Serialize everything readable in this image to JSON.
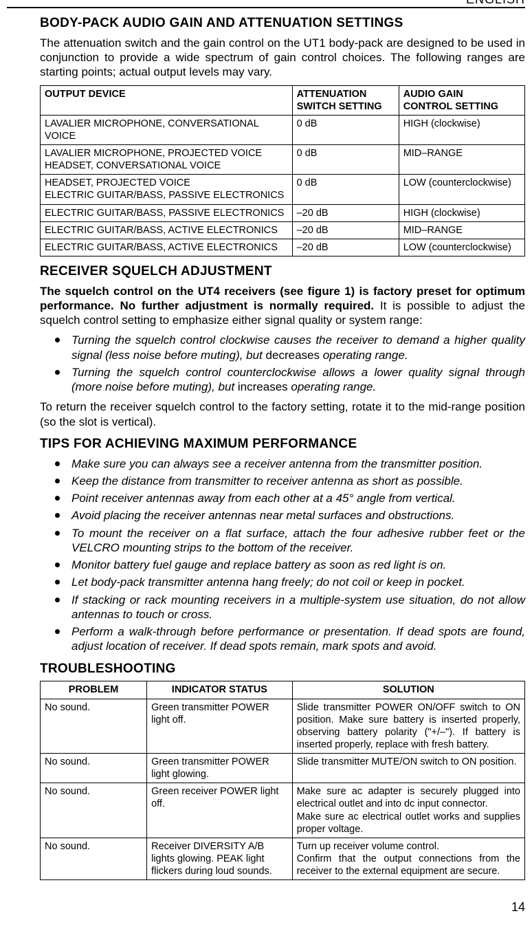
{
  "header": {
    "language": "ENGLISH"
  },
  "section1": {
    "title": "BODY-PACK AUDIO GAIN AND ATTENUATION SETTINGS",
    "intro": "The attenuation switch and the gain control on the UT1 body-pack are designed to be used in conjunction to provide a wide spectrum of gain control choices. The following ranges are starting points; actual output levels may vary.",
    "table": {
      "headers": {
        "c1": "OUTPUT DEVICE",
        "c2a": "ATTENUATION",
        "c2b": "SWITCH SETTING",
        "c3a": "AUDIO GAIN",
        "c3b": "CONTROL SETTING"
      },
      "rows": [
        {
          "c1a": "LAVALIER MICROPHONE, CONVERSATIONAL VOICE",
          "c1b": "",
          "c2": "0 dB",
          "c3": "HIGH (clockwise)"
        },
        {
          "c1a": "LAVALIER MICROPHONE, PROJECTED VOICE",
          "c1b": "HEADSET, CONVERSATIONAL VOICE",
          "c2": "0 dB",
          "c3": "MID–RANGE"
        },
        {
          "c1a": "HEADSET, PROJECTED VOICE",
          "c1b": "ELECTRIC GUITAR/BASS, PASSIVE ELECTRONICS",
          "c2": "0 dB",
          "c3": "LOW (counterclockwise)"
        },
        {
          "c1a": "ELECTRIC GUITAR/BASS, PASSIVE ELECTRONICS",
          "c1b": "",
          "c2": "–20 dB",
          "c3": "HIGH (clockwise)"
        },
        {
          "c1a": "ELECTRIC GUITAR/BASS, ACTIVE ELECTRONICS",
          "c1b": "",
          "c2": "–20 dB",
          "c3": "MID–RANGE"
        },
        {
          "c1a": "ELECTRIC GUITAR/BASS, ACTIVE ELECTRONICS",
          "c1b": "",
          "c2": "–20 dB",
          "c3": "LOW (counterclockwise)"
        }
      ]
    }
  },
  "section2": {
    "title": "RECEIVER SQUELCH ADJUSTMENT",
    "lead_bold": "The squelch control on the UT4 receivers (see figure 1) is factory preset for optimum performance. No further adjustment is normally required.",
    "lead_rest": " It is possible to adjust the squelch control setting to emphasize either signal quality or system range:",
    "bullets": [
      {
        "pre": "Turning the squelch control clockwise causes the receiver to demand a higher quality signal (less noise before muting), but ",
        "mid": "decreases",
        "post": " operating range."
      },
      {
        "pre": "Turning the squelch control counterclockwise allows a lower quality signal through (more noise before muting), but ",
        "mid": "increases",
        "post": " operating range."
      }
    ],
    "outro": "To return the receiver squelch control to the factory setting, rotate it to the  mid-range position (so the slot is vertical)."
  },
  "section3": {
    "title": "TIPS FOR ACHIEVING MAXIMUM PERFORMANCE",
    "bullets": [
      "Make sure you can always see a receiver antenna from the transmitter  position.",
      "Keep the distance from transmitter to receiver antenna as  short as possible.",
      "Point receiver antennas away from each other at a 45° angle from vertical.",
      "Avoid placing the receiver antennas near metal surfaces and obstructions.",
      "To mount the receiver on a flat surface, attach the four adhesive rubber feet or the VELCRO mounting strips to the bottom of the receiver.",
      "Monitor battery fuel gauge and replace battery as soon as red light is on.",
      "Let body-pack transmitter antenna hang freely; do not coil or keep in pocket.",
      "If stacking or rack mounting receivers in a multiple-system use situation, do not allow antennas to touch or cross.",
      "Perform a walk-through before performance or presentation. If dead spots are found, adjust location of receiver. If dead spots remain, mark spots and avoid."
    ]
  },
  "section4": {
    "title": "TROUBLESHOOTING",
    "headers": {
      "c1": "PROBLEM",
      "c2": "INDICATOR STATUS",
      "c3": "SOLUTION"
    },
    "rows": [
      {
        "problem": "No sound.",
        "status": "Green transmitter POWER light off.",
        "solution": "Slide transmitter POWER ON/OFF switch to ON position. Make sure battery is inserted properly, observing battery polarity (\"+/–\").  If battery is inserted properly,  replace with fresh battery."
      },
      {
        "problem": "No sound.",
        "status": "Green transmitter POWER light glowing.",
        "solution": "Slide transmitter MUTE/ON switch to ON position."
      },
      {
        "problem": "No sound.",
        "status": "Green receiver POWER light off.",
        "solution": "Make sure ac adapter is securely plugged into electrical outlet and into dc input connector.\nMake sure ac electrical outlet works and supplies proper voltage."
      },
      {
        "problem": "No sound.",
        "status": "Receiver DIVERSITY A/B lights glowing. PEAK light flickers during loud sounds.",
        "solution": "Turn up receiver volume control.\nConfirm that the output connections from the receiver to the external equipment are secure."
      }
    ]
  },
  "page_number": "14"
}
